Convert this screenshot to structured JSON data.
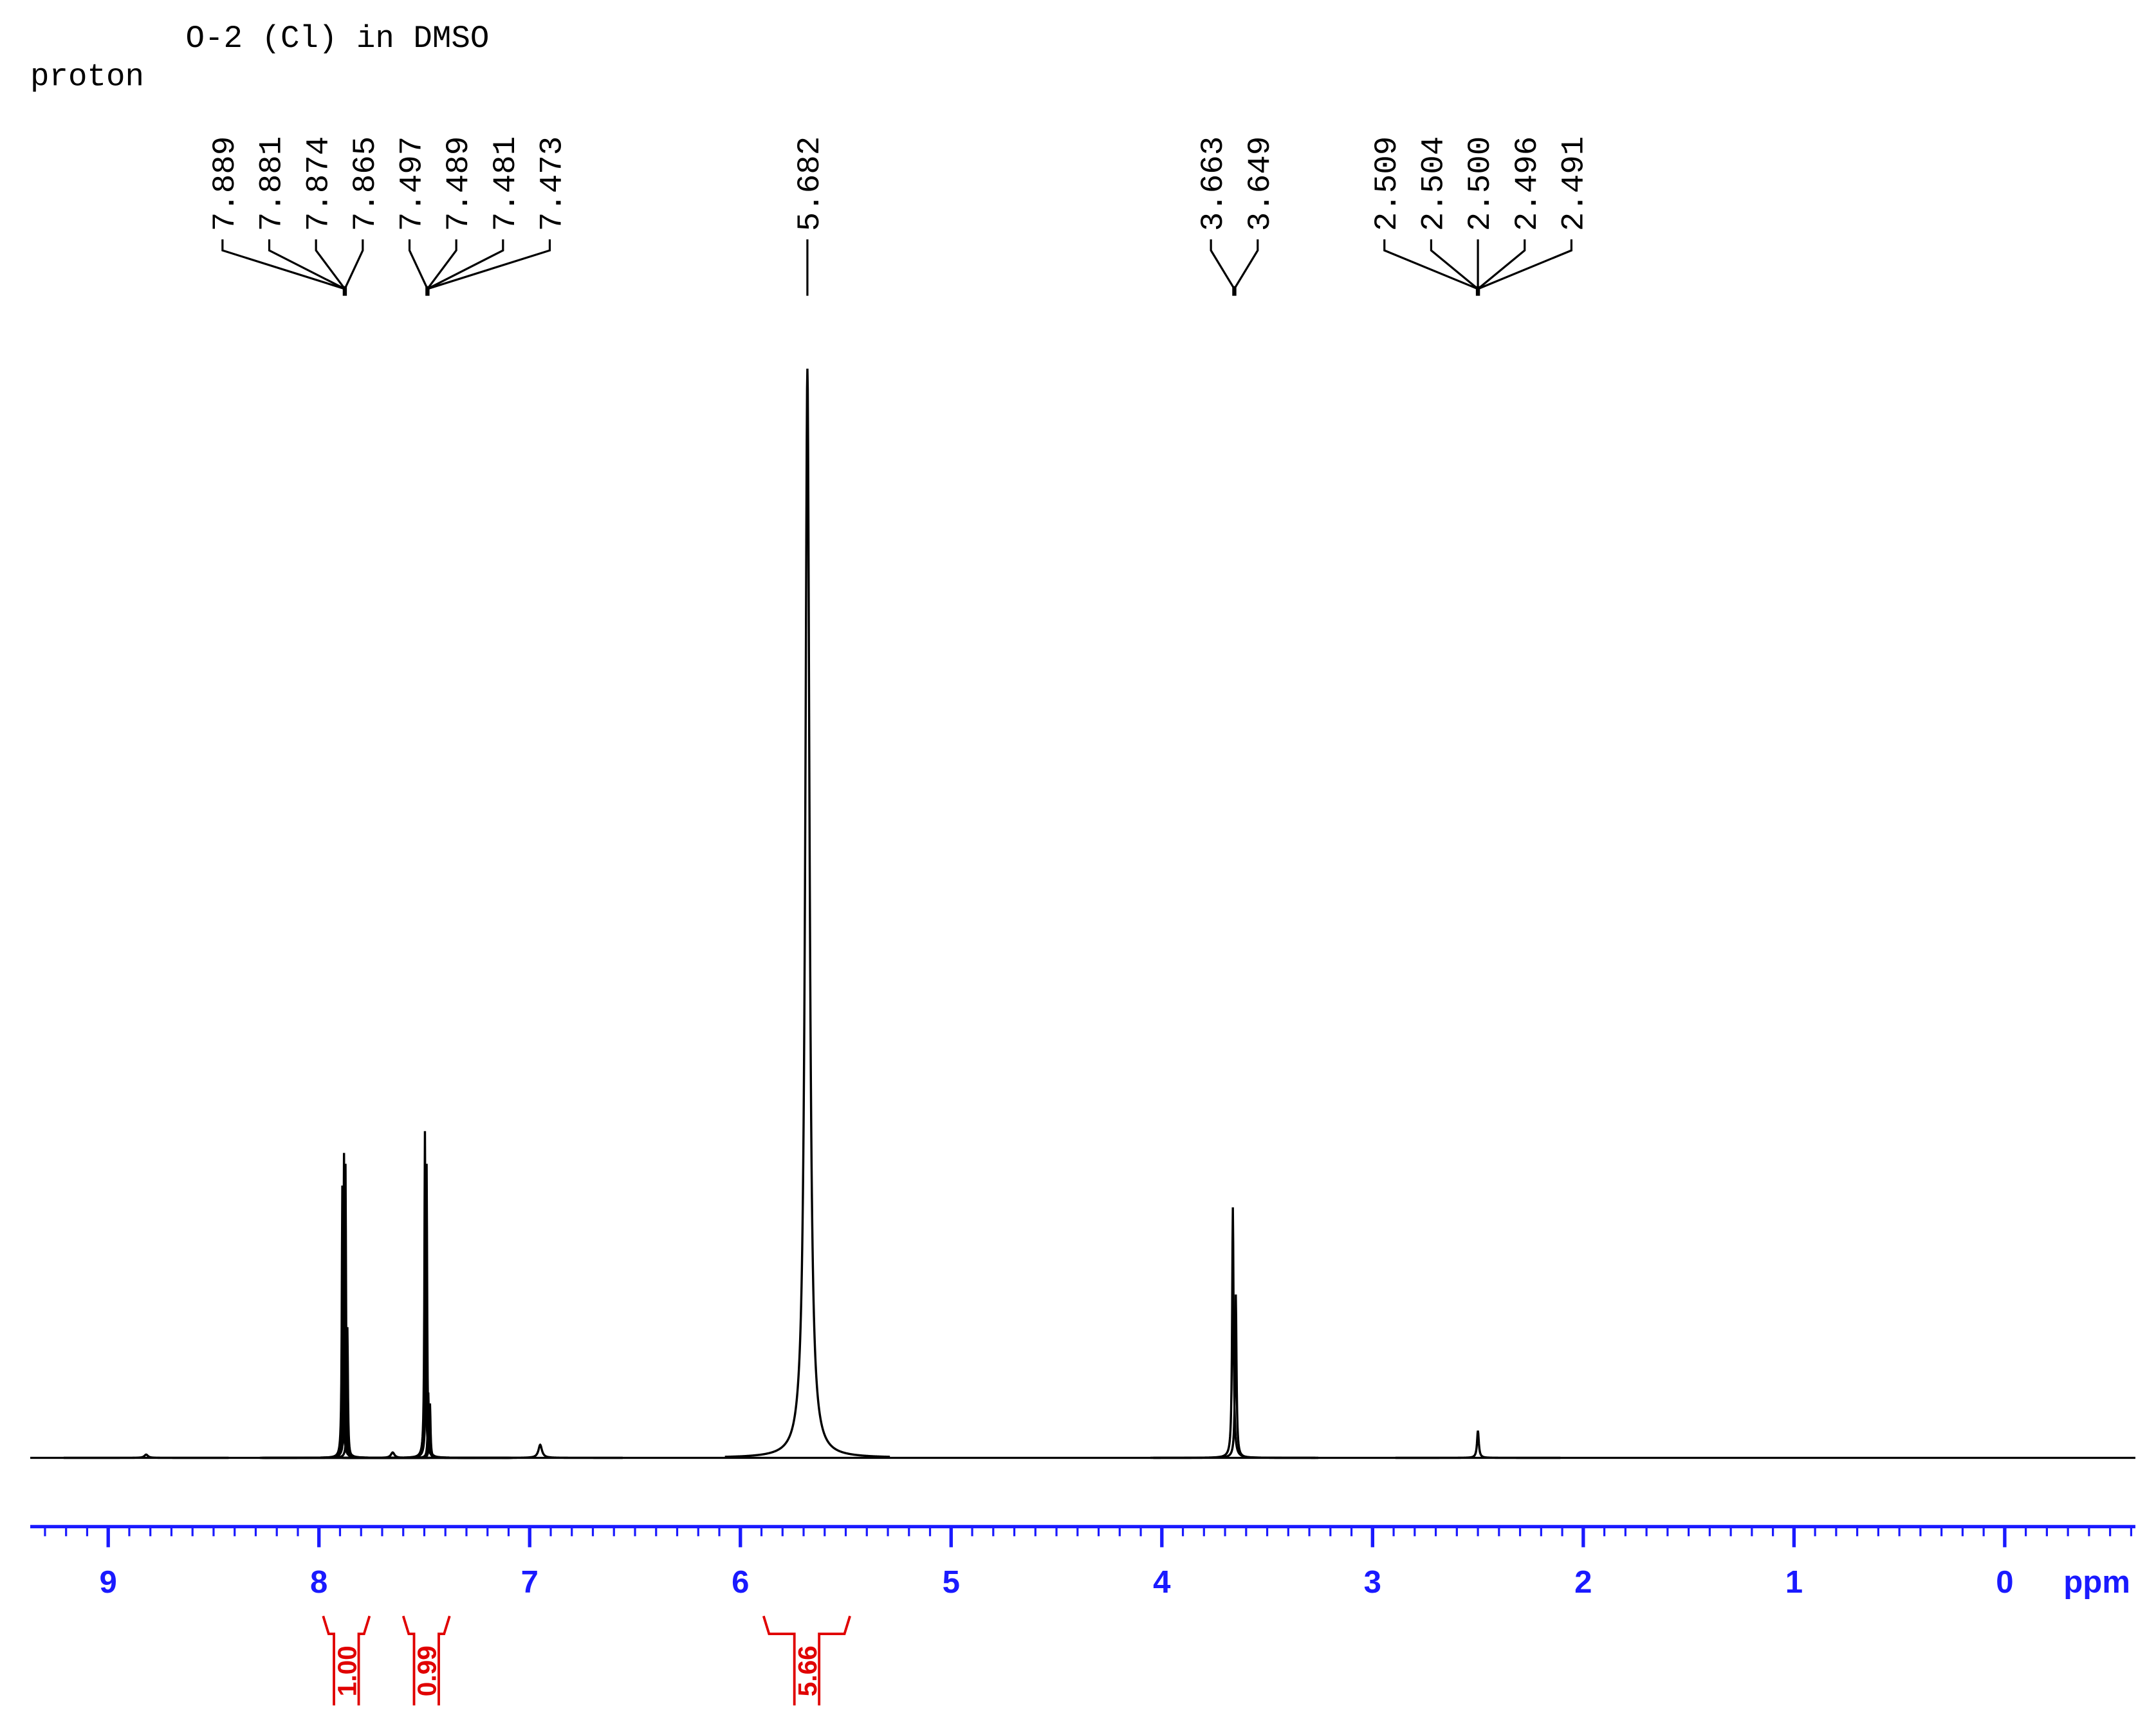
{
  "chart_data": {
    "type": "spectrum",
    "title": "O-2 (Cl) in DMSO",
    "subtitle": "proton",
    "xlabel": "ppm",
    "xlim": [
      9.37,
      -0.62
    ],
    "xticks": [
      9,
      8,
      7,
      6,
      5,
      4,
      3,
      2,
      1,
      0
    ],
    "ylim": [
      0,
      100
    ],
    "color": "#000000",
    "axis_color": "#1a1aff",
    "integral_color": "#e00000",
    "peaks": {
      "x": [
        8.82,
        7.889,
        7.881,
        7.874,
        7.865,
        7.65,
        7.497,
        7.489,
        7.481,
        7.473,
        6.95,
        5.682,
        3.663,
        3.649,
        2.5
      ],
      "values": [
        0.3,
        25,
        28,
        27,
        12,
        0.5,
        30,
        27,
        6,
        5,
        1.2,
        100,
        23,
        15,
        2.5
      ],
      "widths": [
        0.01,
        0.003,
        0.003,
        0.003,
        0.003,
        0.01,
        0.003,
        0.003,
        0.003,
        0.003,
        0.01,
        0.012,
        0.004,
        0.004,
        0.005
      ]
    },
    "peak_label_groups": [
      [
        {
          "value": 7.889,
          "label": "7.889"
        },
        {
          "value": 7.881,
          "label": "7.881"
        },
        {
          "value": 7.874,
          "label": "7.874"
        },
        {
          "value": 7.865,
          "label": "7.865"
        }
      ],
      [
        {
          "value": 7.497,
          "label": "7.497"
        },
        {
          "value": 7.489,
          "label": "7.489"
        },
        {
          "value": 7.481,
          "label": "7.481"
        },
        {
          "value": 7.473,
          "label": "7.473"
        }
      ],
      [
        {
          "value": 5.682,
          "label": "5.682"
        }
      ],
      [
        {
          "value": 3.663,
          "label": "3.663"
        },
        {
          "value": 3.649,
          "label": "3.649"
        }
      ],
      [
        {
          "value": 2.509,
          "label": "2.509"
        },
        {
          "value": 2.504,
          "label": "2.504"
        },
        {
          "value": 2.5,
          "label": "2.500"
        },
        {
          "value": 2.496,
          "label": "2.496"
        },
        {
          "value": 2.491,
          "label": "2.491"
        }
      ]
    ],
    "integrals": [
      {
        "from": 7.98,
        "to": 7.76,
        "value": 1,
        "label": "1.00"
      },
      {
        "from": 7.6,
        "to": 7.38,
        "value": 0.99,
        "label": "0.99"
      },
      {
        "from": 5.89,
        "to": 5.48,
        "value": 5.66,
        "label": "5.66"
      }
    ]
  }
}
